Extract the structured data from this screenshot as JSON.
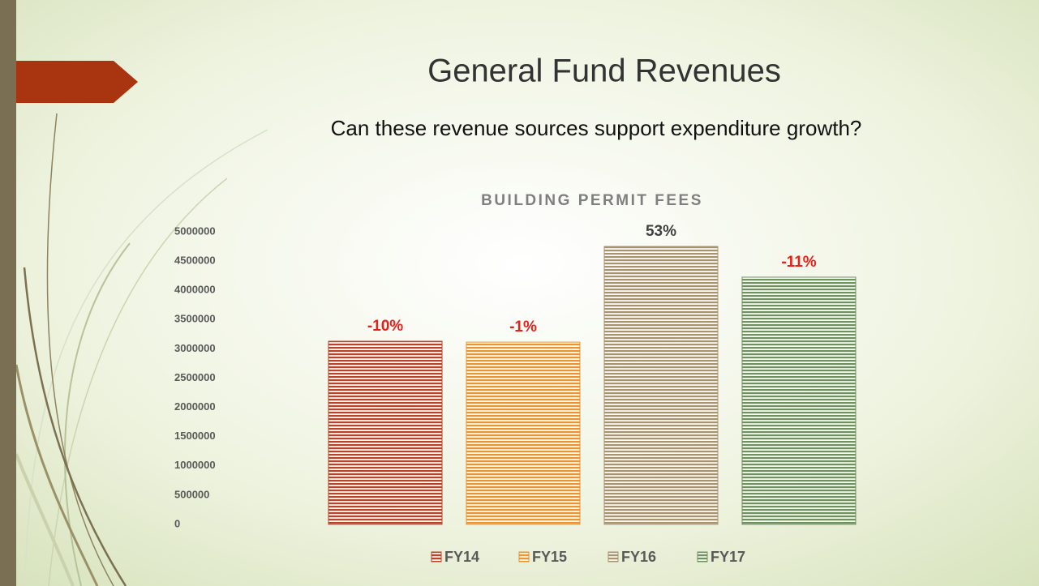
{
  "slide": {
    "title": "General Fund Revenues",
    "subtitle": "Can these revenue sources support expenditure growth?"
  },
  "chart_data": {
    "type": "bar",
    "title": "BUILDING PERMIT FEES",
    "categories": [
      "FY14",
      "FY15",
      "FY16",
      "FY17"
    ],
    "values": [
      3130000,
      3115000,
      4750000,
      4225000
    ],
    "colors": [
      "#b8432b",
      "#ea9431",
      "#a99270",
      "#6f9160"
    ],
    "annotations": [
      "-10%",
      "-1%",
      "53%",
      "-11%"
    ],
    "annotation_colors": [
      "#e8201a",
      "#e8201a",
      "#404040",
      "#e8201a"
    ],
    "ylim": [
      0,
      5000000
    ],
    "yticks": [
      0,
      500000,
      1000000,
      1500000,
      2000000,
      2500000,
      3000000,
      3500000,
      4000000,
      4500000,
      5000000
    ],
    "legend": "bottom",
    "grid": false
  }
}
